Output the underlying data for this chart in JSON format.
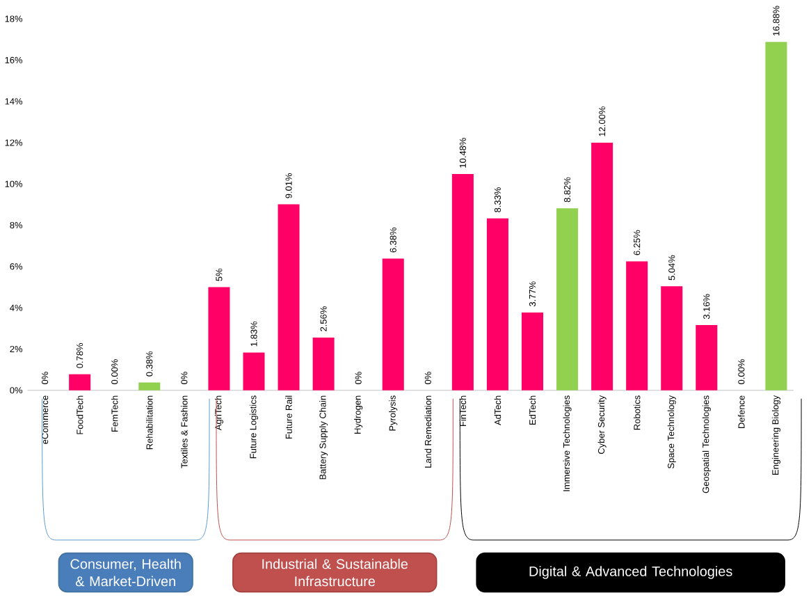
{
  "chart_data": {
    "type": "bar",
    "categories": [
      "eCommerce",
      "FoodTech",
      "FemTech",
      "Rehabilitation",
      "Textiles & Fashion",
      "AgriTech",
      "Future Logistics",
      "Future Rail",
      "Battery Supply Chain",
      "Hydrogen",
      "Pyrolysis",
      "Land Remediation",
      "FinTech",
      "AdTech",
      "EdTech",
      "Immersive Technologies",
      "Cyber Security",
      "Robotics",
      "Space Technology",
      "Geospatial Technologies",
      "Defence",
      "Engineering Biology"
    ],
    "values": [
      0,
      0.78,
      0,
      0.38,
      0,
      5,
      1.83,
      9.01,
      2.56,
      0,
      6.38,
      0,
      10.48,
      8.33,
      3.77,
      8.82,
      12.0,
      6.25,
      5.04,
      3.16,
      0,
      16.88
    ],
    "value_labels": [
      "0%",
      "0.78%",
      "0.00%",
      "0.38%",
      "0%",
      "5%",
      "1.83%",
      "9.01%",
      "2.56%",
      "0%",
      "6.38%",
      "0%",
      "10.48%",
      "8.33%",
      "3.77%",
      "8.82%",
      "12.00%",
      "6.25%",
      "5.04%",
      "3.16%",
      "0.00%",
      "16.88%"
    ],
    "colors": [
      "#ff0066",
      "#ff0066",
      "#ff0066",
      "#92d050",
      "#ff0066",
      "#ff0066",
      "#ff0066",
      "#ff0066",
      "#ff0066",
      "#ff0066",
      "#ff0066",
      "#ff0066",
      "#ff0066",
      "#ff0066",
      "#ff0066",
      "#92d050",
      "#ff0066",
      "#ff0066",
      "#ff0066",
      "#ff0066",
      "#ff0066",
      "#92d050"
    ],
    "ylim": [
      0,
      18
    ],
    "yticks": [
      {
        "value": 0,
        "label": "0%"
      },
      {
        "value": 2,
        "label": "2%"
      },
      {
        "value": 4,
        "label": "4%"
      },
      {
        "value": 6,
        "label": "6%"
      },
      {
        "value": 8,
        "label": "8%"
      },
      {
        "value": 10,
        "label": "10%"
      },
      {
        "value": 12,
        "label": "12%"
      },
      {
        "value": 14,
        "label": "14%"
      },
      {
        "value": 16,
        "label": "16%"
      },
      {
        "value": 18,
        "label": "18%"
      }
    ],
    "annotations": [
      "Consumer, Health & Market-Driven",
      "Industrial & Sustainable Infrastructure",
      "Digital & Advanced Technologies"
    ]
  }
}
